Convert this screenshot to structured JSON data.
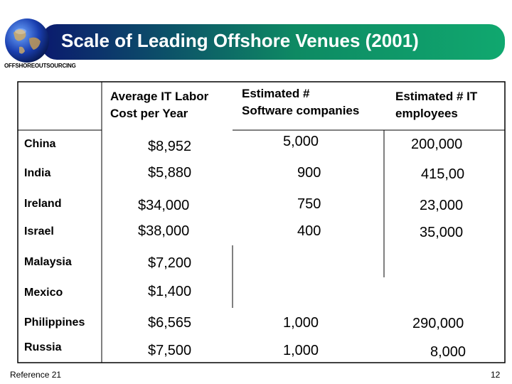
{
  "slide": {
    "title": "Scale of Leading Offshore Venues (2001)",
    "subtitle": "OFFSHOREOUTSOURCING",
    "footer": "Reference 21",
    "page_number": "12"
  },
  "table": {
    "headers": {
      "cost": [
        "Average IT Labor",
        "Cost per Year"
      ],
      "software": [
        "Estimated #",
        "Software companies"
      ],
      "employees": [
        "Estimated # IT",
        "employees"
      ]
    },
    "rows": [
      {
        "country": "China",
        "cost": "$8,952",
        "software": "5,000",
        "employees": "200,000"
      },
      {
        "country": "India",
        "cost": "$5,880",
        "software": "900",
        "employees": "415,00"
      },
      {
        "country": "Ireland",
        "cost": "$34,000",
        "software": "750",
        "employees": "23,000"
      },
      {
        "country": "Israel",
        "cost": "$38,000",
        "software": "400",
        "employees": "35,000"
      },
      {
        "country": "Malaysia",
        "cost": "$7,200",
        "software": "",
        "employees": ""
      },
      {
        "country": "Mexico",
        "cost": "$1,400",
        "software": "",
        "employees": ""
      },
      {
        "country": "Philippines",
        "cost": "$6,565",
        "software": "1,000",
        "employees": "290,000"
      },
      {
        "country": "Russia",
        "cost": "$7,500",
        "software": "1,000",
        "employees": "8,000"
      }
    ]
  },
  "colors": {
    "header_gradient_start": "#0b1a6e",
    "header_gradient_end": "#10a86f",
    "grid_line": "#000000"
  }
}
